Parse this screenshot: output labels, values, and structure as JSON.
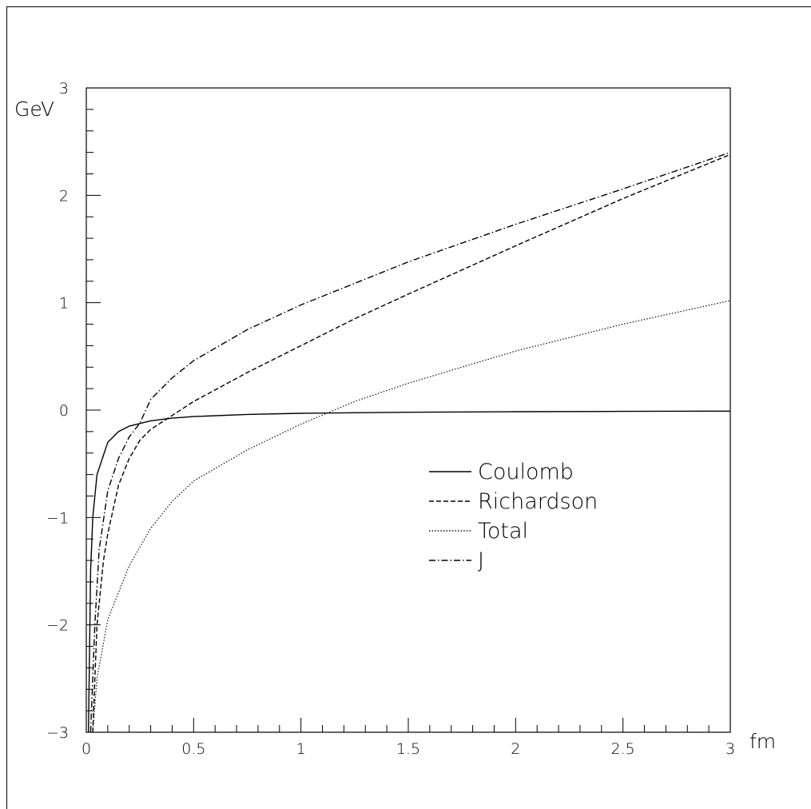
{
  "chart_data": {
    "type": "line",
    "title": "",
    "xlabel": "fm",
    "ylabel": "GeV",
    "xlim": [
      0,
      3
    ],
    "ylim": [
      -3,
      3
    ],
    "grid": false,
    "legend_position": "center-right",
    "x_ticks": [
      "0",
      "0.5",
      "1",
      "1.5",
      "2",
      "2.5",
      "3"
    ],
    "y_ticks": [
      "-3",
      "-2",
      "-1",
      "0",
      "1",
      "2",
      "3"
    ],
    "series": [
      {
        "name": "Coulomb",
        "style": "solid",
        "points": [
          [
            0.01,
            -3.0
          ],
          [
            0.02,
            -1.5
          ],
          [
            0.03,
            -1.0
          ],
          [
            0.05,
            -0.6
          ],
          [
            0.1,
            -0.3
          ],
          [
            0.15,
            -0.2
          ],
          [
            0.2,
            -0.15
          ],
          [
            0.3,
            -0.1
          ],
          [
            0.4,
            -0.075
          ],
          [
            0.5,
            -0.06
          ],
          [
            0.75,
            -0.04
          ],
          [
            1.0,
            -0.03
          ],
          [
            1.5,
            -0.02
          ],
          [
            2.0,
            -0.015
          ],
          [
            2.5,
            -0.012
          ],
          [
            3.0,
            -0.01
          ]
        ]
      },
      {
        "name": "Richardson",
        "style": "dashed",
        "points": [
          [
            0.03,
            -3.0
          ],
          [
            0.05,
            -2.0
          ],
          [
            0.08,
            -1.4
          ],
          [
            0.1,
            -1.15
          ],
          [
            0.15,
            -0.7
          ],
          [
            0.2,
            -0.45
          ],
          [
            0.25,
            -0.28
          ],
          [
            0.3,
            -0.18
          ],
          [
            0.4,
            -0.05
          ],
          [
            0.5,
            0.08
          ],
          [
            0.75,
            0.35
          ],
          [
            1.0,
            0.6
          ],
          [
            1.25,
            0.85
          ],
          [
            1.5,
            1.08
          ],
          [
            2.0,
            1.53
          ],
          [
            2.5,
            1.97
          ],
          [
            3.0,
            2.38
          ]
        ]
      },
      {
        "name": "Total",
        "style": "dotted",
        "points": [
          [
            0.03,
            -3.0
          ],
          [
            0.05,
            -2.5
          ],
          [
            0.1,
            -1.95
          ],
          [
            0.15,
            -1.7
          ],
          [
            0.2,
            -1.45
          ],
          [
            0.3,
            -1.1
          ],
          [
            0.4,
            -0.85
          ],
          [
            0.5,
            -0.66
          ],
          [
            0.75,
            -0.37
          ],
          [
            1.0,
            -0.13
          ],
          [
            1.25,
            0.08
          ],
          [
            1.5,
            0.25
          ],
          [
            2.0,
            0.55
          ],
          [
            2.5,
            0.8
          ],
          [
            3.0,
            1.02
          ]
        ]
      },
      {
        "name": "J",
        "style": "dash-dot",
        "points": [
          [
            0.02,
            -3.0
          ],
          [
            0.04,
            -2.0
          ],
          [
            0.06,
            -1.3
          ],
          [
            0.1,
            -0.75
          ],
          [
            0.15,
            -0.45
          ],
          [
            0.2,
            -0.25
          ],
          [
            0.25,
            -0.12
          ],
          [
            0.3,
            0.1
          ],
          [
            0.4,
            0.3
          ],
          [
            0.5,
            0.46
          ],
          [
            0.75,
            0.75
          ],
          [
            1.0,
            0.98
          ],
          [
            1.5,
            1.38
          ],
          [
            2.0,
            1.73
          ],
          [
            2.5,
            2.06
          ],
          [
            3.0,
            2.4
          ]
        ]
      }
    ]
  }
}
